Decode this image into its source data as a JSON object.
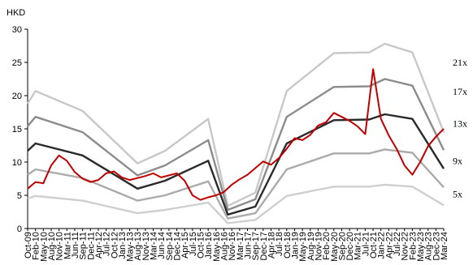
{
  "chart_data": {
    "type": "line",
    "ylabel": "HKD",
    "ylim": [
      0,
      30
    ],
    "yticks": [
      0,
      5,
      10,
      15,
      20,
      25,
      30
    ],
    "x_tick_labels": [
      "Oct-09",
      "Feb-10",
      "May-10",
      "Aug-10",
      "Nov-10",
      "Mar-11",
      "Jun-11",
      "Sep-11",
      "Dec-11",
      "Apr-12",
      "Jul-12",
      "Oct-12",
      "Jan-13",
      "May-13",
      "Aug-13",
      "Nov-13",
      "Mar-14",
      "Jun-14",
      "Sep-14",
      "Dec-14",
      "Apr-15",
      "Jul-15",
      "Oct-15",
      "Jan-16",
      "May-16",
      "Aug-16",
      "Nov-16",
      "Mar-17",
      "Jun-17",
      "Sep-17",
      "Dec-17",
      "Apr-18",
      "Jul-18",
      "Oct-18",
      "Jan-19",
      "May-19",
      "Aug-19",
      "Nov-19",
      "Feb-20",
      "May-20",
      "Sep-20",
      "Dec-20",
      "Mar-21",
      "Jul-21",
      "Oct-21",
      "Jan-22",
      "Apr-22",
      "Jul-22",
      "Nov-22",
      "Feb-23",
      "May-23",
      "Aug-23",
      "Dec-23",
      "Mar-24"
    ],
    "x_range": [
      0,
      53
    ],
    "series": [
      {
        "name": "21x",
        "color": "#c8c8c8",
        "width": 2.4,
        "x": [
          0,
          1,
          7,
          14,
          17.5,
          23,
          25.5,
          29,
          33,
          39,
          43.5,
          45.5,
          49,
          53
        ],
        "y": [
          18.8,
          20.7,
          17.7,
          9.8,
          11.7,
          16.5,
          3.4,
          5.4,
          20.7,
          26.4,
          26.5,
          27.8,
          26.5,
          14.5
        ]
      },
      {
        "name": "17x",
        "color": "#8c8c8c",
        "width": 2.4,
        "x": [
          0,
          1,
          7,
          14,
          17.5,
          23,
          25.5,
          29,
          33,
          39,
          43.5,
          45.5,
          49,
          53
        ],
        "y": [
          15.4,
          16.8,
          14.5,
          8.0,
          9.5,
          13.3,
          2.8,
          4.4,
          16.8,
          21.3,
          21.4,
          22.5,
          21.5,
          11.8
        ]
      },
      {
        "name": "13x",
        "color": "#2a2a2a",
        "width": 2.4,
        "x": [
          0,
          1,
          7,
          14,
          17.5,
          23,
          25.5,
          29,
          33,
          39,
          43.5,
          45.5,
          49,
          53
        ],
        "y": [
          11.7,
          12.8,
          11.0,
          6.0,
          7.2,
          10.2,
          2.1,
          3.3,
          12.8,
          16.3,
          16.4,
          17.2,
          16.5,
          9.0
        ]
      },
      {
        "name": "9x",
        "color": "#ababab",
        "width": 2.4,
        "x": [
          0,
          1,
          7,
          14,
          17.5,
          23,
          25.5,
          29,
          33,
          39,
          43.5,
          45.5,
          49,
          53
        ],
        "y": [
          8.1,
          8.9,
          7.6,
          4.2,
          5.0,
          7.1,
          1.5,
          2.3,
          8.9,
          11.3,
          11.3,
          11.9,
          11.4,
          6.2
        ]
      },
      {
        "name": "5x",
        "color": "#cfcfcf",
        "width": 2.4,
        "x": [
          0,
          1,
          7,
          14,
          17.5,
          23,
          25.5,
          29,
          33,
          39,
          43.5,
          45.5,
          49,
          53
        ],
        "y": [
          4.5,
          4.9,
          4.2,
          2.3,
          2.8,
          3.9,
          0.8,
          1.3,
          4.9,
          6.3,
          6.3,
          6.6,
          6.3,
          3.5
        ]
      }
    ],
    "price": {
      "color": "#c00000",
      "width": 2,
      "x": [
        0,
        1,
        2,
        3,
        4,
        5,
        6,
        7,
        8,
        9,
        10,
        11,
        12,
        13,
        14,
        15,
        16,
        17,
        18,
        19,
        20,
        21,
        22,
        23,
        24,
        25,
        26,
        27,
        28,
        29,
        30,
        31,
        32,
        33,
        34,
        35,
        36,
        37,
        38,
        39,
        40,
        41,
        42,
        43,
        44,
        45,
        46,
        47,
        48,
        49,
        50,
        51,
        52,
        53
      ],
      "y": [
        6.0,
        7.0,
        6.8,
        9.5,
        11.0,
        10.2,
        8.5,
        7.5,
        7.0,
        7.3,
        8.3,
        8.6,
        7.7,
        7.3,
        7.6,
        7.9,
        8.3,
        7.7,
        8.0,
        8.3,
        7.2,
        5.0,
        4.3,
        4.7,
        5.0,
        5.5,
        6.6,
        7.4,
        8.1,
        9.1,
        10.1,
        9.6,
        10.6,
        12.0,
        13.6,
        13.3,
        14.1,
        15.5,
        16.0,
        17.4,
        16.8,
        16.2,
        15.4,
        14.2,
        24.0,
        16.5,
        14.0,
        12.0,
        9.5,
        8.1,
        10.0,
        12.4,
        13.8,
        15.0
      ]
    }
  }
}
